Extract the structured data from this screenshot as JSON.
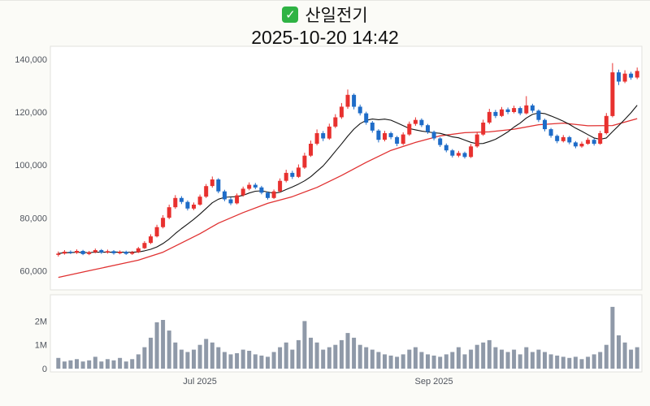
{
  "header": {
    "check_glyph": "✓",
    "title": "산일전기",
    "datetime": "2025-10-20 14:42"
  },
  "colors": {
    "up": "#e8312f",
    "down": "#1e6cc8",
    "volume_bar": "#8f99a8",
    "ma_short": "#141414",
    "ma_long": "#e03131",
    "panel_border": "#e2e2de",
    "panel_fill": "#ffffff",
    "axis_text": "#50555e",
    "check_green": "#2fb344",
    "background": "#fbfbf7"
  },
  "chart_data": {
    "type": "candlestick",
    "title": "산일전기",
    "datetime": "2025-10-20 14:42",
    "legend_position": "none",
    "grid": "off",
    "y_axis": {
      "range": [
        54000,
        143000
      ],
      "ticks": [
        {
          "value": 140000,
          "label": "140,000"
        },
        {
          "value": 120000,
          "label": "120,000"
        },
        {
          "value": 100000,
          "label": "100,000"
        },
        {
          "value": 80000,
          "label": "80,000"
        },
        {
          "value": 60000,
          "label": "60,000"
        }
      ]
    },
    "volume_axis": {
      "range": [
        0,
        2800000
      ],
      "ticks": [
        {
          "value": 2000000,
          "label": "2M"
        },
        {
          "value": 1000000,
          "label": "1M"
        },
        {
          "value": 0,
          "label": "0"
        }
      ]
    },
    "x_ticks": [
      {
        "index": 23,
        "label": "Jul 2025"
      },
      {
        "index": 61,
        "label": "Sep 2025"
      }
    ],
    "candle_format": [
      "open",
      "high",
      "low",
      "close",
      "volume"
    ],
    "candles": [
      [
        66000,
        67300,
        65400,
        66500,
        450000
      ],
      [
        66500,
        67800,
        66100,
        67200,
        300000
      ],
      [
        67200,
        67700,
        66300,
        66800,
        350000
      ],
      [
        66800,
        68100,
        66400,
        67500,
        400000
      ],
      [
        67500,
        67900,
        65900,
        66300,
        300000
      ],
      [
        66300,
        67500,
        65900,
        67000,
        350000
      ],
      [
        67000,
        68400,
        66600,
        67800,
        500000
      ],
      [
        67800,
        68200,
        66400,
        66900,
        300000
      ],
      [
        66900,
        68000,
        66500,
        67400,
        400000
      ],
      [
        67400,
        67800,
        66100,
        66600,
        350000
      ],
      [
        66600,
        67700,
        66200,
        67200,
        450000
      ],
      [
        67200,
        67600,
        66000,
        66400,
        300000
      ],
      [
        66400,
        67500,
        66000,
        67000,
        400000
      ],
      [
        67000,
        69000,
        66700,
        68500,
        600000
      ],
      [
        68500,
        71200,
        68200,
        70500,
        900000
      ],
      [
        70500,
        73800,
        70100,
        73000,
        1300000
      ],
      [
        73000,
        77400,
        72600,
        76500,
        1950000
      ],
      [
        76500,
        81000,
        76000,
        80000,
        2050000
      ],
      [
        80000,
        85000,
        79500,
        84000,
        1600000
      ],
      [
        84000,
        88600,
        83400,
        87500,
        1100000
      ],
      [
        87500,
        88200,
        85200,
        86000,
        800000
      ],
      [
        86000,
        86600,
        82800,
        83500,
        700000
      ],
      [
        83500,
        85800,
        82900,
        85000,
        800000
      ],
      [
        85000,
        88800,
        84600,
        88000,
        1000000
      ],
      [
        88000,
        92800,
        87500,
        92000,
        1250000
      ],
      [
        92000,
        95600,
        91400,
        94500,
        1100000
      ],
      [
        94500,
        95000,
        89300,
        90000,
        900000
      ],
      [
        90000,
        90600,
        86300,
        87000,
        700000
      ],
      [
        87000,
        87800,
        84800,
        85500,
        600000
      ],
      [
        85500,
        89200,
        85100,
        88500,
        650000
      ],
      [
        88500,
        91800,
        88000,
        91000,
        800000
      ],
      [
        91000,
        93400,
        90400,
        92500,
        750000
      ],
      [
        92500,
        93200,
        90800,
        91500,
        600000
      ],
      [
        91500,
        92100,
        88900,
        89500,
        550000
      ],
      [
        89500,
        90000,
        86900,
        87500,
        500000
      ],
      [
        87500,
        90700,
        87100,
        90000,
        700000
      ],
      [
        90000,
        94900,
        89600,
        94000,
        900000
      ],
      [
        94000,
        98200,
        93400,
        97000,
        1100000
      ],
      [
        97000,
        97800,
        94700,
        95500,
        800000
      ],
      [
        95500,
        100200,
        95100,
        99000,
        1200000
      ],
      [
        99000,
        104600,
        98500,
        103500,
        2000000
      ],
      [
        103500,
        109200,
        103000,
        108000,
        1300000
      ],
      [
        108000,
        113400,
        107400,
        112000,
        1100000
      ],
      [
        112000,
        112800,
        109000,
        110000,
        800000
      ],
      [
        110000,
        115600,
        109500,
        114500,
        900000
      ],
      [
        114500,
        119200,
        113900,
        118000,
        1000000
      ],
      [
        118000,
        123400,
        117400,
        122000,
        1200000
      ],
      [
        122000,
        128500,
        121200,
        126500,
        1500000
      ],
      [
        126500,
        127000,
        121000,
        122000,
        1300000
      ],
      [
        122000,
        122800,
        118700,
        119500,
        1000000
      ],
      [
        119500,
        120100,
        115200,
        116000,
        900000
      ],
      [
        116000,
        116600,
        112200,
        113000,
        800000
      ],
      [
        113000,
        113500,
        108500,
        109500,
        700000
      ],
      [
        109500,
        112900,
        108900,
        112000,
        600000
      ],
      [
        112000,
        112600,
        109700,
        110500,
        550000
      ],
      [
        110500,
        111000,
        107100,
        108000,
        500000
      ],
      [
        108000,
        112300,
        107500,
        111500,
        600000
      ],
      [
        111500,
        116400,
        111000,
        115500,
        800000
      ],
      [
        115500,
        118000,
        114800,
        117000,
        900000
      ],
      [
        117000,
        117600,
        114300,
        115000,
        700000
      ],
      [
        115000,
        115500,
        111800,
        112500,
        600000
      ],
      [
        112500,
        113000,
        109300,
        110000,
        550000
      ],
      [
        110000,
        110500,
        106800,
        107500,
        500000
      ],
      [
        107500,
        108100,
        104800,
        105500,
        600000
      ],
      [
        105500,
        106000,
        102800,
        103500,
        700000
      ],
      [
        103500,
        105300,
        102900,
        104500,
        900000
      ],
      [
        104500,
        105000,
        102400,
        103000,
        600000
      ],
      [
        103000,
        107900,
        102600,
        107000,
        800000
      ],
      [
        107000,
        112500,
        106500,
        111500,
        1000000
      ],
      [
        111500,
        117100,
        111000,
        116000,
        1100000
      ],
      [
        116000,
        121200,
        115400,
        120000,
        1200000
      ],
      [
        120000,
        120800,
        117700,
        118500,
        900000
      ],
      [
        118500,
        121900,
        118100,
        121000,
        800000
      ],
      [
        121000,
        121700,
        119200,
        120000,
        700000
      ],
      [
        120000,
        122400,
        119500,
        121500,
        800000
      ],
      [
        121500,
        122100,
        118800,
        119500,
        600000
      ],
      [
        119500,
        126000,
        119100,
        122500,
        900000
      ],
      [
        122500,
        123100,
        119700,
        120500,
        700000
      ],
      [
        120500,
        121000,
        116200,
        117000,
        800000
      ],
      [
        117000,
        117500,
        112700,
        113500,
        700000
      ],
      [
        113500,
        114000,
        110300,
        111000,
        600000
      ],
      [
        111000,
        111500,
        108200,
        109000,
        550000
      ],
      [
        109000,
        111300,
        108500,
        110500,
        500000
      ],
      [
        110500,
        111000,
        107800,
        108500,
        450000
      ],
      [
        108500,
        109000,
        106300,
        107000,
        500000
      ],
      [
        107000,
        108800,
        106500,
        108000,
        400000
      ],
      [
        108000,
        110300,
        107600,
        109500,
        500000
      ],
      [
        109500,
        110000,
        107300,
        108000,
        600000
      ],
      [
        108000,
        112900,
        107600,
        112000,
        700000
      ],
      [
        112000,
        119600,
        111500,
        118500,
        1000000
      ],
      [
        118500,
        138500,
        118000,
        135000,
        2600000
      ],
      [
        135000,
        136000,
        130200,
        131500,
        1400000
      ],
      [
        131500,
        135800,
        130900,
        134500,
        1100000
      ],
      [
        134500,
        135200,
        132200,
        133000,
        800000
      ],
      [
        133000,
        136800,
        132400,
        135500,
        900000
      ]
    ],
    "moving_averages": {
      "short": {
        "window": 10,
        "color": "#141414"
      },
      "long_sampled_points": {
        "color": "#e03131",
        "points": [
          [
            0,
            57500
          ],
          [
            5,
            60000
          ],
          [
            10,
            62500
          ],
          [
            13,
            64000
          ],
          [
            17,
            67000
          ],
          [
            20,
            70500
          ],
          [
            23,
            74000
          ],
          [
            26,
            78000
          ],
          [
            30,
            82000
          ],
          [
            34,
            85500
          ],
          [
            38,
            88000
          ],
          [
            42,
            91500
          ],
          [
            46,
            96000
          ],
          [
            50,
            101000
          ],
          [
            54,
            105500
          ],
          [
            58,
            108500
          ],
          [
            62,
            111000
          ],
          [
            66,
            112200
          ],
          [
            70,
            112500
          ],
          [
            74,
            113500
          ],
          [
            78,
            115200
          ],
          [
            82,
            115800
          ],
          [
            86,
            114800
          ],
          [
            90,
            114900
          ],
          [
            94,
            117500
          ]
        ]
      }
    }
  }
}
